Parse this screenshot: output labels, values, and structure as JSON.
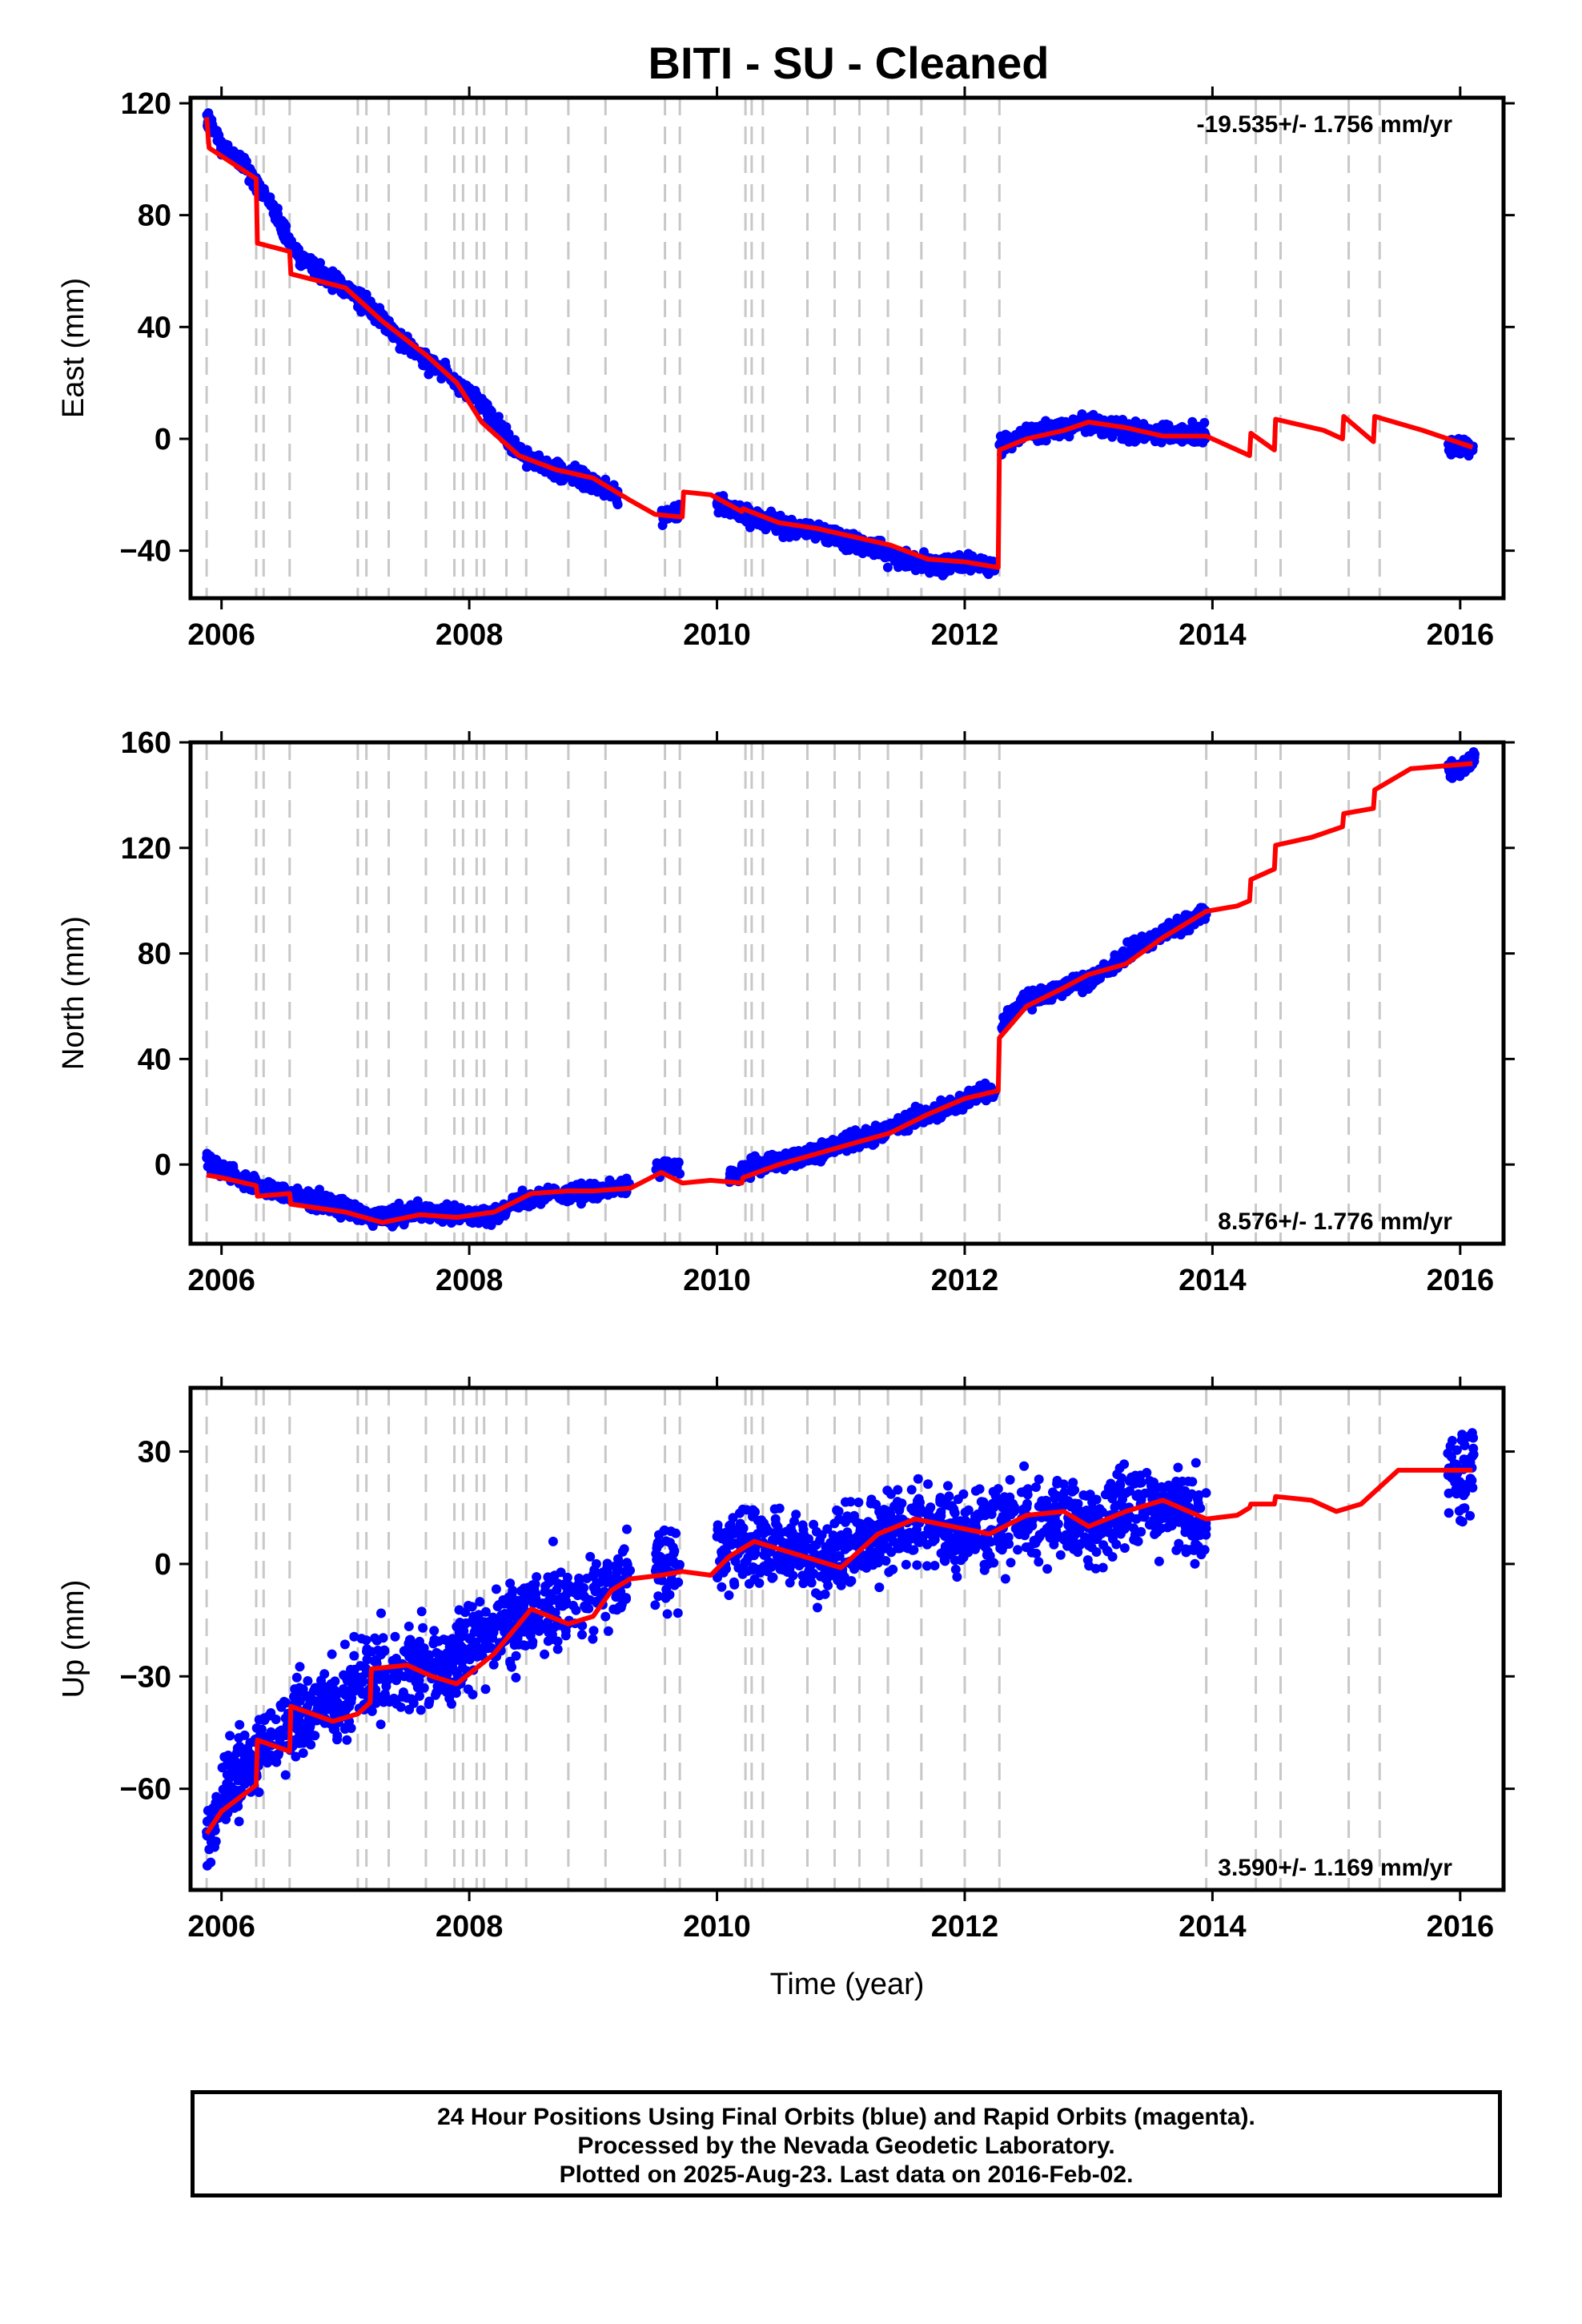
{
  "title": "BITI  - SU - Cleaned",
  "colors": {
    "points": "#0000ff",
    "model": "#ff0000",
    "events": "#c8c8c8",
    "frame": "#000000"
  },
  "chart_data": [
    {
      "type": "scatter",
      "panel": "east",
      "ylabel": "East (mm)",
      "xlabel": "",
      "xlim": [
        2005.75,
        2016.35
      ],
      "ylim": [
        -57,
        122
      ],
      "xticks": [
        2006,
        2008,
        2010,
        2012,
        2014,
        2016
      ],
      "yticks": [
        -40,
        0,
        40,
        80,
        120
      ],
      "ytick_labels": [
        "−40",
        "0",
        "40",
        "80",
        "120"
      ],
      "rate_label": "-19.535+/- 1.756 mm/yr",
      "rate_position": "top-right",
      "series": [
        {
          "kind": "points",
          "segments": [
            {
              "x": [
                2005.88,
                2006.0,
                2006.2,
                2006.4,
                2006.6,
                2006.9,
                2007.2,
                2007.5,
                2007.8,
                2008.1,
                2008.4,
                2008.7,
                2009.0,
                2009.2
              ],
              "y": [
                115,
                105,
                97,
                84,
                66,
                57,
                47,
                33,
                24,
                12,
                -5,
                -11,
                -16,
                -20
              ]
            },
            {
              "x": [
                2009.55,
                2009.7
              ],
              "y": [
                -27,
                -26
              ]
            },
            {
              "x": [
                2010.0,
                2010.3,
                2010.6,
                2010.9,
                2011.2,
                2011.5,
                2011.8,
                2012.0,
                2012.25
              ],
              "y": [
                -23,
                -28,
                -32,
                -34,
                -38,
                -43,
                -45,
                -44,
                -46
              ]
            },
            {
              "x": [
                2012.28,
                2012.5,
                2012.8,
                2013.0,
                2013.3,
                2013.6,
                2013.95
              ],
              "y": [
                -2,
                2,
                4,
                6,
                3,
                2,
                2
              ]
            },
            {
              "x": [
                2015.9,
                2016.05,
                2016.12
              ],
              "y": [
                -2,
                -3,
                -4
              ]
            }
          ]
        },
        {
          "kind": "model",
          "x": [
            2005.88,
            2005.9,
            2006.28,
            2006.29,
            2006.55,
            2006.56,
            2007.0,
            2007.3,
            2007.65,
            2007.9,
            2008.1,
            2008.4,
            2008.7,
            2009.0,
            2009.3,
            2009.5,
            2009.72,
            2009.73,
            2009.95,
            2010.2,
            2010.21,
            2010.5,
            2010.8,
            2011.1,
            2011.4,
            2011.7,
            2012.0,
            2012.27,
            2012.28,
            2012.5,
            2012.8,
            2013.0,
            2013.3,
            2013.6,
            2013.95,
            2014.3,
            2014.31,
            2014.5,
            2014.51,
            2014.9,
            2015.05,
            2015.06,
            2015.3,
            2015.31,
            2015.7,
            2016.1
          ],
          "y": [
            115,
            104,
            93,
            70,
            67,
            59,
            54,
            42,
            30,
            20,
            6,
            -6,
            -11,
            -14,
            -22,
            -27,
            -28,
            -19,
            -20,
            -26,
            -25,
            -30,
            -32,
            -35,
            -38,
            -43,
            -44,
            -46,
            -4,
            0,
            3,
            6,
            4,
            1,
            1,
            -6,
            2,
            -4,
            7,
            3,
            0,
            8,
            -1,
            8,
            3,
            -3
          ]
        }
      ]
    },
    {
      "type": "scatter",
      "panel": "north",
      "ylabel": "North (mm)",
      "xlabel": "",
      "xlim": [
        2005.75,
        2016.35
      ],
      "ylim": [
        -30,
        160
      ],
      "xticks": [
        2006,
        2008,
        2010,
        2012,
        2014,
        2016
      ],
      "yticks": [
        0,
        40,
        80,
        120,
        160
      ],
      "ytick_labels": [
        "0",
        "40",
        "80",
        "120",
        "160"
      ],
      "rate_label": "8.576+/- 1.776 mm/yr",
      "rate_position": "bottom-right",
      "series": [
        {
          "kind": "points",
          "segments": [
            {
              "x": [
                2005.88,
                2006.0,
                2006.3,
                2006.6,
                2006.9,
                2007.2,
                2007.5,
                2007.8,
                2008.1,
                2008.3,
                2008.5,
                2008.8,
                2009.1,
                2009.3
              ],
              "y": [
                3,
                -2,
                -8,
                -12,
                -15,
                -20,
                -19,
                -18,
                -20,
                -17,
                -12,
                -11,
                -9,
                -8
              ]
            },
            {
              "x": [
                2009.5,
                2009.7
              ],
              "y": [
                -2,
                0
              ]
            },
            {
              "x": [
                2010.1,
                2010.4,
                2010.7,
                2011.0,
                2011.3,
                2011.6,
                2011.9,
                2012.1,
                2012.25
              ],
              "y": [
                -4,
                0,
                3,
                8,
                12,
                18,
                22,
                26,
                28
              ]
            },
            {
              "x": [
                2012.28,
                2012.5,
                2012.8,
                2013.1,
                2013.3,
                2013.6,
                2013.95
              ],
              "y": [
                52,
                63,
                67,
                72,
                80,
                88,
                95
              ]
            },
            {
              "x": [
                2015.9,
                2016.05,
                2016.12
              ],
              "y": [
                150,
                152,
                155
              ]
            }
          ]
        },
        {
          "kind": "model",
          "x": [
            2005.88,
            2006.0,
            2006.28,
            2006.29,
            2006.55,
            2006.56,
            2007.0,
            2007.3,
            2007.6,
            2007.9,
            2008.2,
            2008.5,
            2008.8,
            2009.0,
            2009.3,
            2009.55,
            2009.72,
            2009.73,
            2009.95,
            2010.2,
            2010.21,
            2010.5,
            2010.8,
            2011.1,
            2011.4,
            2011.7,
            2012.0,
            2012.27,
            2012.28,
            2012.5,
            2012.8,
            2013.0,
            2013.3,
            2013.6,
            2013.95,
            2014.2,
            2014.3,
            2014.31,
            2014.5,
            2014.51,
            2014.8,
            2015.05,
            2015.06,
            2015.3,
            2015.31,
            2015.6,
            2016.1
          ],
          "y": [
            -4,
            -5,
            -8,
            -12,
            -11,
            -15,
            -18,
            -22,
            -19,
            -20,
            -18,
            -11,
            -10,
            -10,
            -9,
            -3,
            -7,
            -7,
            -6,
            -7,
            -5,
            0,
            4,
            8,
            12,
            19,
            25,
            28,
            48,
            60,
            67,
            72,
            76,
            86,
            96,
            98,
            100,
            108,
            112,
            121,
            124,
            128,
            133,
            135,
            142,
            150,
            152
          ]
        }
      ]
    },
    {
      "type": "scatter",
      "panel": "up",
      "ylabel": "Up (mm)",
      "xlabel": "Time (year)",
      "xlim": [
        2005.75,
        2016.35
      ],
      "ylim": [
        -87,
        47
      ],
      "xticks": [
        2006,
        2008,
        2010,
        2012,
        2014,
        2016
      ],
      "yticks": [
        -60,
        -30,
        0,
        30
      ],
      "ytick_labels": [
        "−60",
        "−30",
        "0",
        "30"
      ],
      "rate_label": "3.590+/- 1.169 mm/yr",
      "rate_position": "bottom-right",
      "series": [
        {
          "kind": "points",
          "segments": [
            {
              "x": [
                2005.88,
                2006.0,
                2006.3,
                2006.6,
                2006.9,
                2007.2,
                2007.5,
                2007.8,
                2008.1,
                2008.4,
                2008.7,
                2009.0,
                2009.3
              ],
              "y": [
                -72,
                -62,
                -50,
                -42,
                -38,
                -30,
                -27,
                -28,
                -20,
                -14,
                -12,
                -8,
                -3
              ]
            },
            {
              "x": [
                2009.5,
                2009.7
              ],
              "y": [
                0,
                -2
              ]
            },
            {
              "x": [
                2010.0,
                2010.3,
                2010.6,
                2010.9,
                2011.2,
                2011.5,
                2011.8,
                2012.1,
                2012.4,
                2012.7,
                2013.0,
                2013.3,
                2013.6,
                2013.95
              ],
              "y": [
                3,
                5,
                4,
                1,
                6,
                12,
                10,
                8,
                14,
                12,
                10,
                14,
                17,
                10
              ]
            },
            {
              "x": [
                2015.9,
                2016.05,
                2016.12
              ],
              "y": [
                20,
                25,
                30
              ]
            }
          ]
        },
        {
          "kind": "model",
          "x": [
            2005.88,
            2006.0,
            2006.28,
            2006.29,
            2006.55,
            2006.56,
            2006.9,
            2007.1,
            2007.2,
            2007.21,
            2007.5,
            2007.7,
            2007.9,
            2008.2,
            2008.5,
            2008.8,
            2009.0,
            2009.15,
            2009.3,
            2009.55,
            2009.72,
            2009.95,
            2010.1,
            2010.3,
            2010.5,
            2010.8,
            2011.0,
            2011.3,
            2011.6,
            2011.9,
            2012.2,
            2012.5,
            2012.8,
            2013.0,
            2013.3,
            2013.6,
            2013.95,
            2014.2,
            2014.3,
            2014.31,
            2014.5,
            2014.51,
            2014.8,
            2015.0,
            2015.2,
            2015.5,
            2015.8,
            2016.1
          ],
          "y": [
            -72,
            -66,
            -59,
            -47,
            -50,
            -38,
            -42,
            -40,
            -37,
            -28,
            -27,
            -30,
            -32,
            -24,
            -12,
            -16,
            -14,
            -7,
            -4,
            -3,
            -2,
            -3,
            2,
            6,
            4,
            1,
            -1,
            8,
            12,
            10,
            8,
            13,
            14,
            10,
            14,
            17,
            12,
            13,
            15,
            16,
            16,
            18,
            17,
            14,
            16,
            25,
            25,
            25
          ]
        }
      ]
    }
  ],
  "event_lines": [
    2005.88,
    2006.28,
    2006.34,
    2006.55,
    2007.1,
    2007.17,
    2007.35,
    2007.65,
    2007.88,
    2007.95,
    2008.06,
    2008.12,
    2008.3,
    2008.46,
    2008.8,
    2009.1,
    2009.58,
    2009.7,
    2010.23,
    2010.28,
    2010.37,
    2010.73,
    2010.95,
    2011.15,
    2011.38,
    2011.65,
    2012.0,
    2012.28,
    2013.95,
    2014.35,
    2014.55,
    2015.1,
    2015.35
  ],
  "footer": {
    "line1": "24 Hour Positions Using Final Orbits (blue) and Rapid Orbits (magenta).",
    "line2": "Processed by the Nevada Geodetic Laboratory.",
    "line3": "Plotted on 2025-Aug-23. Last data on 2016-Feb-02."
  }
}
